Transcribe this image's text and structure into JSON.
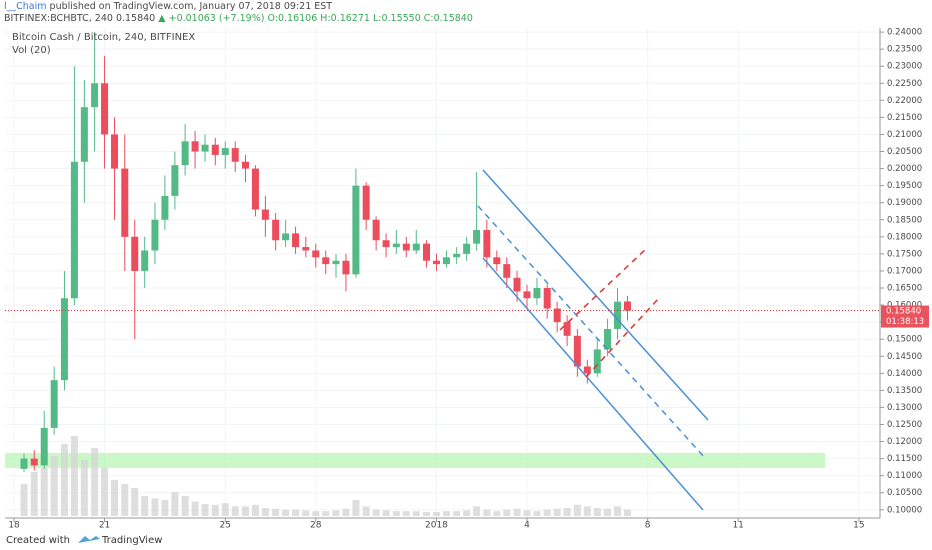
{
  "header": {
    "author": "l__Chaim",
    "published": "published on TradingView.com, January 07, 2018 09:21 EST",
    "symbol": "BITFINEX:BCHBTC, 240",
    "price": "0.15840",
    "arrow": "▲",
    "change": "+0.01063 (+7.19%)",
    "open": "O:0.16106",
    "high": "H:0.16271",
    "low": "L:0.15550",
    "close": "C:0.15840"
  },
  "footer": {
    "created": "Created with",
    "brand": "TradingView"
  },
  "chart_data": {
    "type": "candlestick",
    "title": "Bitcoin Cash / Bitcoin, 240, BITFINEX",
    "volume_label": "Vol (20)",
    "last_price_label": "0.15840",
    "countdown": "01:38:13",
    "up_color": "#53b987",
    "down_color": "#eb4d5c",
    "volume_color": "#d6d6d6",
    "grid": true,
    "x": [
      0.33,
      0.67,
      1,
      1.33,
      1.67,
      2,
      2.33,
      2.67,
      3,
      3.33,
      3.67,
      4,
      4.33,
      4.67,
      5,
      5.33,
      5.67,
      6,
      6.33,
      6.67,
      7,
      7.33,
      7.67,
      8,
      8.33,
      8.67,
      9,
      9.33,
      9.67,
      10,
      10.33,
      10.67,
      11,
      11.33,
      11.67,
      12,
      12.33,
      12.67,
      13,
      13.33,
      13.67,
      14,
      14.33,
      14.67,
      15,
      15.33,
      15.67,
      16,
      16.33,
      16.67,
      17,
      17.33,
      17.67,
      18,
      18.33,
      18.67,
      19,
      19.33,
      19.67,
      20,
      20.33
    ],
    "open": [
      0.112,
      0.115,
      0.113,
      0.124,
      0.138,
      0.162,
      0.202,
      0.218,
      0.225,
      0.21,
      0.2,
      0.18,
      0.17,
      0.176,
      0.185,
      0.192,
      0.201,
      0.208,
      0.205,
      0.207,
      0.204,
      0.206,
      0.202,
      0.2,
      0.188,
      0.185,
      0.179,
      0.181,
      0.177,
      0.176,
      0.174,
      0.172,
      0.173,
      0.169,
      0.195,
      0.185,
      0.179,
      0.177,
      0.178,
      0.176,
      0.178,
      0.173,
      0.172,
      0.174,
      0.175,
      0.178,
      0.182,
      0.174,
      0.172,
      0.168,
      0.164,
      0.162,
      0.165,
      0.159,
      0.155,
      0.151,
      0.142,
      0.14,
      0.147,
      0.153,
      0.16106
    ],
    "high": [
      0.1165,
      0.1175,
      0.129,
      0.142,
      0.17,
      0.23,
      0.226,
      0.24,
      0.233,
      0.215,
      0.21,
      0.185,
      0.18,
      0.19,
      0.198,
      0.205,
      0.213,
      0.211,
      0.21,
      0.209,
      0.208,
      0.208,
      0.204,
      0.201,
      0.192,
      0.187,
      0.185,
      0.183,
      0.18,
      0.178,
      0.176,
      0.175,
      0.175,
      0.2,
      0.196,
      0.186,
      0.181,
      0.182,
      0.18,
      0.182,
      0.179,
      0.175,
      0.176,
      0.177,
      0.18,
      0.199,
      0.185,
      0.176,
      0.174,
      0.17,
      0.166,
      0.168,
      0.166,
      0.161,
      0.157,
      0.153,
      0.144,
      0.15,
      0.156,
      0.165,
      0.16271
    ],
    "low": [
      0.111,
      0.1115,
      0.112,
      0.122,
      0.135,
      0.16,
      0.19,
      0.205,
      0.2,
      0.185,
      0.17,
      0.15,
      0.165,
      0.172,
      0.182,
      0.188,
      0.198,
      0.2,
      0.202,
      0.201,
      0.2,
      0.199,
      0.196,
      0.186,
      0.18,
      0.176,
      0.177,
      0.175,
      0.174,
      0.171,
      0.169,
      0.168,
      0.164,
      0.168,
      0.182,
      0.176,
      0.174,
      0.175,
      0.174,
      0.175,
      0.171,
      0.17,
      0.171,
      0.172,
      0.173,
      0.176,
      0.171,
      0.17,
      0.165,
      0.161,
      0.159,
      0.16,
      0.156,
      0.152,
      0.148,
      0.139,
      0.137,
      0.139,
      0.145,
      0.15,
      0.1555
    ],
    "close": [
      0.115,
      0.113,
      0.124,
      0.138,
      0.162,
      0.202,
      0.218,
      0.225,
      0.21,
      0.2,
      0.18,
      0.17,
      0.176,
      0.185,
      0.192,
      0.201,
      0.208,
      0.205,
      0.207,
      0.204,
      0.206,
      0.202,
      0.2,
      0.188,
      0.185,
      0.179,
      0.181,
      0.177,
      0.176,
      0.174,
      0.172,
      0.173,
      0.169,
      0.195,
      0.185,
      0.179,
      0.177,
      0.178,
      0.176,
      0.178,
      0.173,
      0.172,
      0.174,
      0.175,
      0.178,
      0.182,
      0.174,
      0.172,
      0.168,
      0.164,
      0.162,
      0.165,
      0.159,
      0.155,
      0.151,
      0.142,
      0.14,
      0.147,
      0.153,
      0.161,
      0.1584
    ],
    "volume": [
      40,
      55,
      60,
      75,
      90,
      100,
      70,
      85,
      60,
      45,
      40,
      35,
      25,
      22,
      20,
      30,
      25,
      18,
      15,
      14,
      16,
      12,
      12,
      14,
      10,
      9,
      8,
      8,
      7,
      6,
      6,
      7,
      9,
      20,
      12,
      8,
      7,
      6,
      6,
      6,
      5,
      5,
      6,
      6,
      7,
      12,
      8,
      6,
      8,
      9,
      7,
      6,
      8,
      9,
      10,
      14,
      12,
      10,
      9,
      12,
      8
    ],
    "vlim": [
      0,
      100
    ],
    "xlim": [
      -0.3,
      28.7
    ],
    "xticks": [
      {
        "value": 0,
        "label": "18"
      },
      {
        "value": 3,
        "label": "21"
      },
      {
        "value": 7,
        "label": "25"
      },
      {
        "value": 10,
        "label": "28"
      },
      {
        "value": 14,
        "label": "2018"
      },
      {
        "value": 17,
        "label": "4"
      },
      {
        "value": 21,
        "label": "8"
      },
      {
        "value": 24,
        "label": "11"
      },
      {
        "value": 28,
        "label": "15"
      }
    ],
    "ylim": [
      0.0976,
      0.2412
    ],
    "yticks": [
      {
        "value": 0.1,
        "label": "0.10000"
      },
      {
        "value": 0.105,
        "label": "0.10500"
      },
      {
        "value": 0.11,
        "label": "0.11000"
      },
      {
        "value": 0.115,
        "label": "0.11500"
      },
      {
        "value": 0.12,
        "label": "0.12000"
      },
      {
        "value": 0.125,
        "label": "0.12500"
      },
      {
        "value": 0.13,
        "label": "0.13000"
      },
      {
        "value": 0.135,
        "label": "0.13500"
      },
      {
        "value": 0.14,
        "label": "0.14000"
      },
      {
        "value": 0.145,
        "label": "0.14500"
      },
      {
        "value": 0.15,
        "label": "0.15000"
      },
      {
        "value": 0.155,
        "label": "0.15500"
      },
      {
        "value": 0.16,
        "label": "0.16000"
      },
      {
        "value": 0.165,
        "label": "0.16500"
      },
      {
        "value": 0.17,
        "label": "0.17000"
      },
      {
        "value": 0.175,
        "label": "0.17500"
      },
      {
        "value": 0.18,
        "label": "0.18000"
      },
      {
        "value": 0.185,
        "label": "0.18500"
      },
      {
        "value": 0.19,
        "label": "0.19000"
      },
      {
        "value": 0.195,
        "label": "0.19500"
      },
      {
        "value": 0.2,
        "label": "0.20000"
      },
      {
        "value": 0.205,
        "label": "0.20500"
      },
      {
        "value": 0.21,
        "label": "0.21000"
      },
      {
        "value": 0.215,
        "label": "0.21500"
      },
      {
        "value": 0.22,
        "label": "0.22000"
      },
      {
        "value": 0.225,
        "label": "0.22500"
      },
      {
        "value": 0.23,
        "label": "0.23000"
      },
      {
        "value": 0.235,
        "label": "0.23500"
      },
      {
        "value": 0.24,
        "label": "0.24000"
      }
    ]
  }
}
